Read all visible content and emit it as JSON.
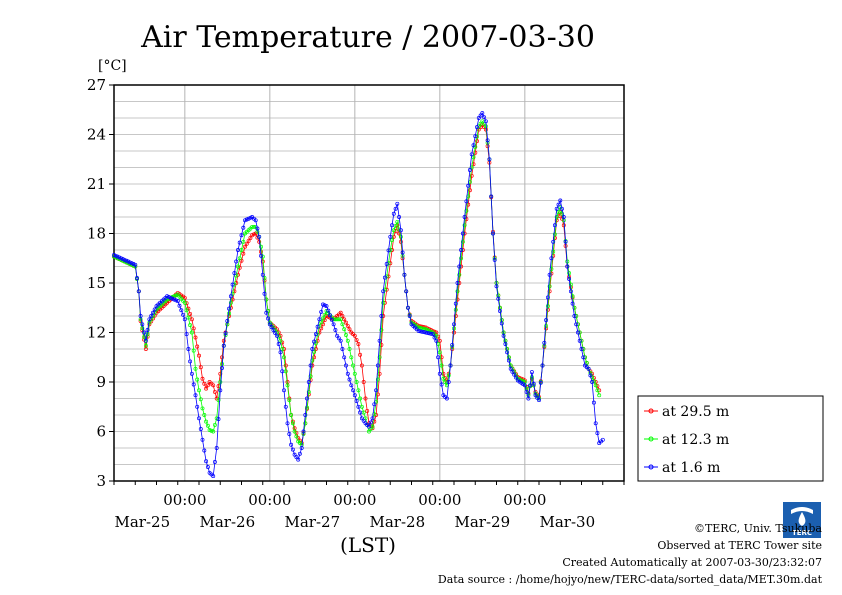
{
  "chart_data": {
    "type": "line",
    "title": "Air Temperature / 2007-03-30",
    "ylabel": "[°C]",
    "xlabel": "(LST)",
    "ylim": [
      3,
      27
    ],
    "yticks": [
      3,
      6,
      9,
      12,
      15,
      18,
      21,
      24,
      27
    ],
    "x_range_hours": [
      0,
      144
    ],
    "x_tick_labels": [
      {
        "time": "00:00",
        "date": "Mar-25"
      },
      {
        "time": "00:00",
        "date": "Mar-26"
      },
      {
        "time": "00:00",
        "date": "Mar-27"
      },
      {
        "time": "00:00",
        "date": "Mar-28"
      },
      {
        "time": "00:00",
        "date": "Mar-29"
      },
      {
        "time": "00:00",
        "date": "Mar-30"
      }
    ],
    "grid": true,
    "legend_position": "bottom-right outside",
    "series": [
      {
        "name": "at 29.5 m",
        "color": "#ff0000",
        "points": [
          [
            0,
            16.6
          ],
          [
            3,
            16.3
          ],
          [
            6,
            16.0
          ],
          [
            7,
            14.5
          ],
          [
            7.5,
            12.7
          ],
          [
            9,
            11.0
          ],
          [
            10,
            12.5
          ],
          [
            12,
            13.2
          ],
          [
            15,
            13.8
          ],
          [
            18,
            14.4
          ],
          [
            20,
            14.1
          ],
          [
            22,
            12.8
          ],
          [
            24,
            10.6
          ],
          [
            25,
            9.2
          ],
          [
            26,
            8.6
          ],
          [
            27,
            9.0
          ],
          [
            28,
            8.8
          ],
          [
            29,
            8.0
          ],
          [
            30,
            9.5
          ],
          [
            31,
            11.5
          ],
          [
            33,
            13.5
          ],
          [
            35,
            15.5
          ],
          [
            37,
            17.2
          ],
          [
            39,
            17.9
          ],
          [
            40,
            18.0
          ],
          [
            41,
            17.5
          ],
          [
            42,
            16.3
          ],
          [
            43,
            14.0
          ],
          [
            44,
            12.6
          ],
          [
            46,
            12.2
          ],
          [
            47,
            11.8
          ],
          [
            48,
            11.0
          ],
          [
            49,
            9.0
          ],
          [
            50,
            7.0
          ],
          [
            51,
            6.2
          ],
          [
            52,
            5.6
          ],
          [
            53,
            5.3
          ],
          [
            54,
            6.5
          ],
          [
            56,
            10.0
          ],
          [
            58,
            12.0
          ],
          [
            60,
            13.0
          ],
          [
            62,
            12.8
          ],
          [
            64,
            13.2
          ],
          [
            65,
            12.8
          ],
          [
            66,
            12.4
          ],
          [
            67,
            12.0
          ],
          [
            68,
            11.8
          ],
          [
            69,
            11.3
          ],
          [
            70,
            10.0
          ],
          [
            71,
            8.0
          ],
          [
            72,
            6.5
          ],
          [
            73,
            6.2
          ],
          [
            74,
            7.0
          ],
          [
            75,
            9.5
          ],
          [
            76,
            13.0
          ],
          [
            78,
            16.2
          ],
          [
            79,
            17.8
          ],
          [
            80,
            18.5
          ],
          [
            81,
            17.5
          ],
          [
            82,
            15.5
          ],
          [
            83,
            13.5
          ],
          [
            84,
            12.7
          ],
          [
            86,
            12.4
          ],
          [
            88,
            12.3
          ],
          [
            90,
            12.1
          ],
          [
            91,
            12.0
          ],
          [
            92,
            11.5
          ],
          [
            93,
            9.5
          ],
          [
            94,
            9.0
          ],
          [
            95,
            10.0
          ],
          [
            97,
            14.0
          ],
          [
            99,
            18.0
          ],
          [
            101,
            21.5
          ],
          [
            103,
            24.3
          ],
          [
            104,
            24.6
          ],
          [
            105,
            24.3
          ],
          [
            106,
            22.3
          ],
          [
            107,
            18.1
          ],
          [
            108,
            15.0
          ],
          [
            110,
            12.0
          ],
          [
            112,
            10.0
          ],
          [
            114,
            9.3
          ],
          [
            116,
            9.1
          ],
          [
            117,
            8.3
          ],
          [
            118,
            9.2
          ],
          [
            119,
            8.4
          ],
          [
            120,
            8.1
          ],
          [
            121,
            10.0
          ],
          [
            123,
            14.5
          ],
          [
            125,
            18.8
          ],
          [
            126,
            19.3
          ],
          [
            127,
            18.5
          ],
          [
            128,
            16.0
          ],
          [
            130,
            13.5
          ],
          [
            132,
            11.5
          ],
          [
            133,
            10.5
          ],
          [
            134,
            9.8
          ],
          [
            135,
            9.5
          ],
          [
            136,
            9.0
          ],
          [
            137,
            8.5
          ]
        ]
      },
      {
        "name": "at 12.3 m",
        "color": "#00ff00",
        "points": [
          [
            0,
            16.6
          ],
          [
            3,
            16.3
          ],
          [
            6,
            16.0
          ],
          [
            7,
            14.5
          ],
          [
            7.5,
            12.8
          ],
          [
            9,
            11.2
          ],
          [
            10,
            12.6
          ],
          [
            12,
            13.4
          ],
          [
            15,
            14.0
          ],
          [
            18,
            14.3
          ],
          [
            20,
            13.8
          ],
          [
            22,
            12.0
          ],
          [
            23,
            9.8
          ],
          [
            24,
            8.5
          ],
          [
            25,
            7.4
          ],
          [
            26,
            6.6
          ],
          [
            27,
            6.1
          ],
          [
            28,
            6.0
          ],
          [
            29,
            6.8
          ],
          [
            30,
            9.0
          ],
          [
            31,
            11.2
          ],
          [
            33,
            13.8
          ],
          [
            35,
            16.0
          ],
          [
            37,
            18.0
          ],
          [
            39,
            18.4
          ],
          [
            40,
            18.4
          ],
          [
            41,
            17.8
          ],
          [
            42,
            16.6
          ],
          [
            43,
            14.0
          ],
          [
            44,
            12.6
          ],
          [
            46,
            12.0
          ],
          [
            47,
            11.5
          ],
          [
            48,
            10.5
          ],
          [
            49,
            8.8
          ],
          [
            50,
            7.0
          ],
          [
            51,
            6.0
          ],
          [
            52,
            5.4
          ],
          [
            53,
            5.2
          ],
          [
            54,
            6.5
          ],
          [
            56,
            10.3
          ],
          [
            58,
            12.4
          ],
          [
            60,
            13.3
          ],
          [
            62,
            12.8
          ],
          [
            64,
            12.8
          ],
          [
            65,
            12.2
          ],
          [
            66,
            11.5
          ],
          [
            67,
            10.5
          ],
          [
            68,
            9.5
          ],
          [
            69,
            8.5
          ],
          [
            70,
            7.5
          ],
          [
            71,
            6.8
          ],
          [
            72,
            6.0
          ],
          [
            73,
            6.3
          ],
          [
            74,
            7.8
          ],
          [
            75,
            10.5
          ],
          [
            76,
            13.8
          ],
          [
            78,
            17.0
          ],
          [
            79,
            18.2
          ],
          [
            80,
            18.7
          ],
          [
            81,
            17.8
          ],
          [
            82,
            15.5
          ],
          [
            83,
            13.5
          ],
          [
            84,
            12.6
          ],
          [
            86,
            12.3
          ],
          [
            88,
            12.2
          ],
          [
            90,
            12.0
          ],
          [
            91,
            11.8
          ],
          [
            92,
            10.8
          ],
          [
            93,
            9.2
          ],
          [
            94,
            8.8
          ],
          [
            95,
            10.0
          ],
          [
            97,
            14.5
          ],
          [
            99,
            18.5
          ],
          [
            101,
            22.0
          ],
          [
            103,
            24.5
          ],
          [
            104,
            24.8
          ],
          [
            105,
            24.5
          ],
          [
            106,
            22.5
          ],
          [
            107,
            18.0
          ],
          [
            108,
            15.0
          ],
          [
            110,
            12.0
          ],
          [
            112,
            10.0
          ],
          [
            114,
            9.2
          ],
          [
            116,
            9.0
          ],
          [
            117,
            8.2
          ],
          [
            118,
            9.3
          ],
          [
            119,
            8.3
          ],
          [
            120,
            8.0
          ],
          [
            121,
            10.0
          ],
          [
            123,
            14.8
          ],
          [
            125,
            19.0
          ],
          [
            126,
            19.6
          ],
          [
            127,
            18.8
          ],
          [
            128,
            16.3
          ],
          [
            130,
            13.5
          ],
          [
            132,
            11.5
          ],
          [
            133,
            10.5
          ],
          [
            134,
            9.8
          ],
          [
            135,
            9.3
          ],
          [
            136,
            8.8
          ],
          [
            137,
            8.2
          ]
        ]
      },
      {
        "name": "at 1.6 m",
        "color": "#0000ff",
        "points": [
          [
            0,
            16.7
          ],
          [
            3,
            16.4
          ],
          [
            6,
            16.1
          ],
          [
            7,
            14.5
          ],
          [
            7.5,
            13.0
          ],
          [
            9,
            11.5
          ],
          [
            10,
            12.8
          ],
          [
            12,
            13.6
          ],
          [
            15,
            14.2
          ],
          [
            18,
            13.9
          ],
          [
            20,
            12.8
          ],
          [
            21,
            11.0
          ],
          [
            22,
            9.5
          ],
          [
            23,
            8.2
          ],
          [
            24,
            6.8
          ],
          [
            25,
            5.5
          ],
          [
            26,
            4.2
          ],
          [
            27,
            3.5
          ],
          [
            28,
            3.3
          ],
          [
            29,
            5.0
          ],
          [
            30,
            8.5
          ],
          [
            31,
            11.2
          ],
          [
            33,
            14.2
          ],
          [
            35,
            17.0
          ],
          [
            37,
            18.8
          ],
          [
            39,
            19.0
          ],
          [
            40,
            18.8
          ],
          [
            41,
            17.8
          ],
          [
            42,
            15.5
          ],
          [
            43,
            13.2
          ],
          [
            44,
            12.5
          ],
          [
            46,
            11.8
          ],
          [
            47,
            10.8
          ],
          [
            48,
            8.5
          ],
          [
            49,
            6.5
          ],
          [
            50,
            5.2
          ],
          [
            51,
            4.6
          ],
          [
            52,
            4.3
          ],
          [
            53,
            5.0
          ],
          [
            54,
            7.0
          ],
          [
            56,
            11.0
          ],
          [
            58,
            12.8
          ],
          [
            59,
            13.7
          ],
          [
            60,
            13.6
          ],
          [
            62,
            12.5
          ],
          [
            63,
            11.8
          ],
          [
            64,
            11.5
          ],
          [
            65,
            10.5
          ],
          [
            66,
            9.5
          ],
          [
            67,
            8.8
          ],
          [
            68,
            8.2
          ],
          [
            69,
            7.5
          ],
          [
            70,
            6.8
          ],
          [
            71,
            6.5
          ],
          [
            72,
            6.3
          ],
          [
            73,
            6.8
          ],
          [
            74,
            8.5
          ],
          [
            75,
            11.5
          ],
          [
            76,
            14.5
          ],
          [
            78,
            17.8
          ],
          [
            79,
            19.2
          ],
          [
            80,
            19.8
          ],
          [
            81,
            18.2
          ],
          [
            82,
            15.5
          ],
          [
            83,
            13.5
          ],
          [
            84,
            12.5
          ],
          [
            86,
            12.1
          ],
          [
            88,
            12.0
          ],
          [
            90,
            11.9
          ],
          [
            91,
            11.5
          ],
          [
            92,
            9.5
          ],
          [
            93,
            8.2
          ],
          [
            94,
            8.0
          ],
          [
            95,
            10.0
          ],
          [
            97,
            15.0
          ],
          [
            99,
            19.0
          ],
          [
            101,
            22.8
          ],
          [
            103,
            25.0
          ],
          [
            104,
            25.3
          ],
          [
            105,
            24.8
          ],
          [
            106,
            22.5
          ],
          [
            107,
            18.0
          ],
          [
            108,
            14.8
          ],
          [
            110,
            11.8
          ],
          [
            112,
            9.8
          ],
          [
            114,
            9.1
          ],
          [
            116,
            8.8
          ],
          [
            117,
            8.0
          ],
          [
            118,
            9.6
          ],
          [
            119,
            8.2
          ],
          [
            120,
            7.9
          ],
          [
            121,
            10.0
          ],
          [
            123,
            15.5
          ],
          [
            125,
            19.5
          ],
          [
            126,
            20.0
          ],
          [
            127,
            19.0
          ],
          [
            128,
            16.0
          ],
          [
            130,
            13.0
          ],
          [
            132,
            11.0
          ],
          [
            133,
            10.0
          ],
          [
            134,
            9.8
          ],
          [
            135,
            9.0
          ],
          [
            136,
            6.5
          ],
          [
            137,
            5.3
          ],
          [
            138,
            5.5
          ]
        ]
      }
    ]
  },
  "footer": {
    "copyright": "©TERC, Univ. Tsukuba",
    "observed": "Observed at TERC Tower site",
    "created": "Created Automatically at 2007-03-30/23:32:07",
    "source": "Data source : /home/hojyo/new/TERC-data/sorted_data/MET.30m.dat"
  },
  "logo_text": "TERC"
}
